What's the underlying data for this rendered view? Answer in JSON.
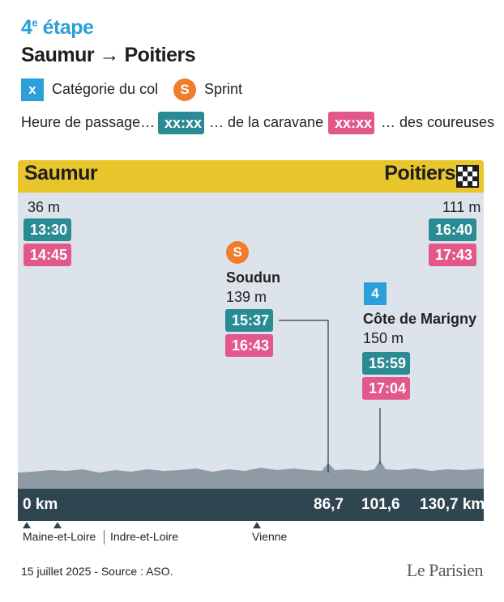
{
  "header": {
    "stage_number": "4",
    "stage_suffix": "e",
    "stage_word": " étape",
    "route": "Saumur → Poitiers"
  },
  "legend": {
    "category_symbol": "x",
    "category_label": "Catégorie du col",
    "sprint_symbol": "S",
    "sprint_label": "Sprint",
    "passage_label": "Heure de passage…",
    "caravan_chip": "xx:xx",
    "caravan_label": "… de la caravane",
    "riders_chip": "xx:xx",
    "riders_label": "… des coureuses"
  },
  "profile": {
    "start_city": "Saumur",
    "end_city": "Poitiers",
    "end_flag_icon": "checkered-flag-icon",
    "colors": {
      "caravan": "#2b8b94",
      "riders": "#e2588a",
      "category": "#2a9fd8",
      "sprint": "#ef7d29",
      "header": "#e8c52a",
      "terrain": "#8e9aa4",
      "km_bar": "#2f4550"
    },
    "start": {
      "altitude": "36 m",
      "caravan": "13:30",
      "riders": "14:45",
      "km": "0 km"
    },
    "finish": {
      "altitude": "111 m",
      "caravan": "16:40",
      "riders": "17:43",
      "km": "130,7 km"
    },
    "sprint": {
      "symbol": "S",
      "name": "Soudun",
      "altitude": "139 m",
      "caravan": "15:37",
      "riders": "16:43",
      "km": "86,7"
    },
    "climb": {
      "category": "4",
      "name": "Côte de Marigny",
      "altitude": "150 m",
      "caravan": "15:59",
      "riders": "17:04",
      "km": "101,6"
    }
  },
  "departments": [
    "Maine-et-Loire",
    "Indre-et-Loire",
    "Vienne"
  ],
  "footer": {
    "source": "15 juillet 2025 - Source : ASO.",
    "logo": "Le Parisien"
  }
}
